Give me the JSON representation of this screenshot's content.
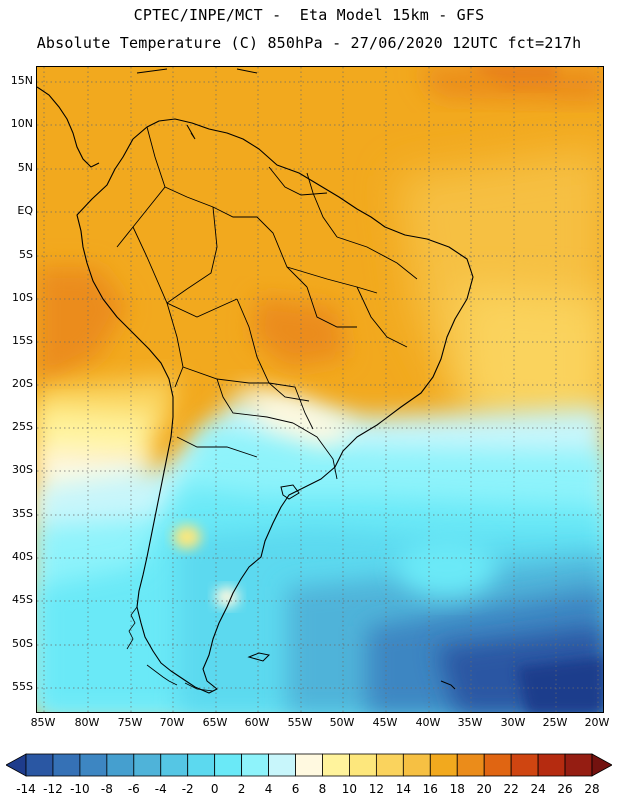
{
  "header": {
    "line1": "CPTEC/INPE/MCT -  Eta Model 15km - GFS",
    "line2": "Absolute Temperature (C) 850hPa - 27/06/2020 12UTC fct=217h"
  },
  "axes": {
    "lat_labels": [
      "15N",
      "10N",
      "5N",
      "EQ",
      "5S",
      "10S",
      "15S",
      "20S",
      "25S",
      "30S",
      "35S",
      "40S",
      "45S",
      "50S",
      "55S"
    ],
    "lon_labels": [
      "85W",
      "80W",
      "75W",
      "70W",
      "65W",
      "60W",
      "55W",
      "50W",
      "45W",
      "40W",
      "35W",
      "30W",
      "25W",
      "20W"
    ]
  },
  "colorbar": {
    "labels": [
      "-14",
      "-12",
      "-10",
      "-8",
      "-6",
      "-4",
      "-2",
      "0",
      "2",
      "4",
      "6",
      "8",
      "10",
      "12",
      "14",
      "16",
      "18",
      "20",
      "22",
      "24",
      "26",
      "28"
    ],
    "colors": [
      "#1e3c8c",
      "#2a57a3",
      "#3571b6",
      "#3d86c2",
      "#459fcf",
      "#4fb3d9",
      "#55c6e4",
      "#5cd9ef",
      "#6ae9f7",
      "#8ef3fb",
      "#c8f6fb",
      "#fff9e0",
      "#fff39c",
      "#fde77c",
      "#fad35d",
      "#f6c043",
      "#f2a91e",
      "#eb8c1a",
      "#e06512",
      "#cf4511",
      "#b52b10",
      "#951d12",
      "#73120f"
    ]
  }
}
